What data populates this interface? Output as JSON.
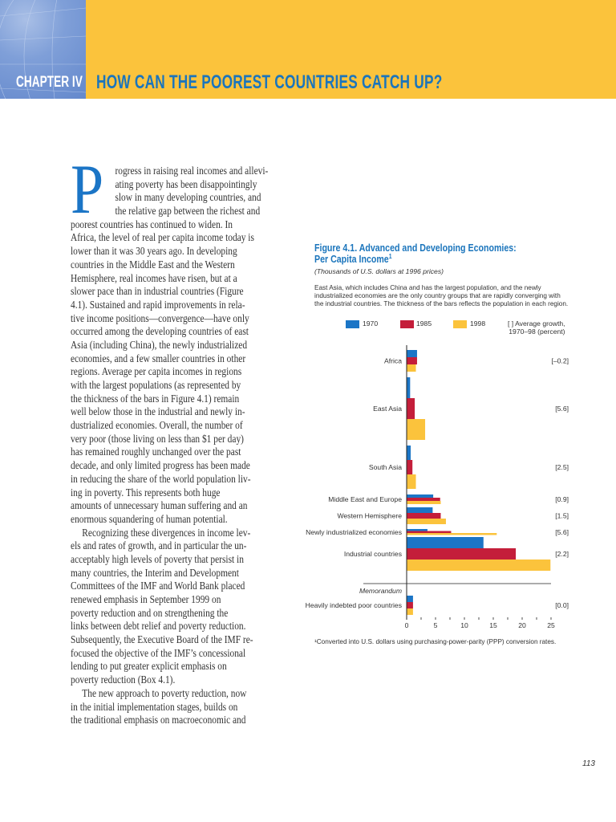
{
  "header": {
    "chapter": "CHAPTER IV",
    "title": "HOW CAN THE POOREST COUNTRIES CATCH UP?",
    "colors": {
      "band": "#FBC33C",
      "title": "#1B75BC"
    }
  },
  "body": {
    "drop_cap": "P",
    "lines": [
      "rogress in raising real incomes and allevi-",
      "ating poverty has been disappointingly",
      "slow in many developing countries, and",
      "the relative gap between the richest and",
      "poorest countries has continued to widen. In",
      "Africa, the level of real per capita income today is",
      "lower than it was 30 years ago. In developing",
      "countries in the Middle East and the Western",
      "Hemisphere, real incomes have risen, but at a",
      "slower pace than in industrial countries (Figure",
      "4.1). Sustained and rapid improvements in rela-",
      "tive income positions—convergence—have only",
      "occurred among the developing countries of east",
      "Asia (including China), the newly industrialized",
      "economies, and a few smaller countries in other",
      "regions. Average per capita incomes in regions",
      "with the largest populations (as represented by",
      "the thickness of the bars in Figure 4.1) remain",
      "well below those in the industrial and newly in-",
      "dustrialized economies. Overall, the number of",
      "very poor (those living on less than $1 per day)",
      "has remained roughly unchanged over the past",
      "decade, and only limited progress has been made",
      "in reducing the share of the world population liv-",
      "ing in poverty. This represents both huge",
      "amounts of unnecessary human suffering and an",
      "enormous squandering of human potential.",
      "Recognizing these divergences in income lev-",
      "els and rates of growth, and in particular the un-",
      "acceptably high levels of poverty that persist in",
      "many countries, the Interim and Development",
      "Committees of the IMF and World Bank placed",
      "renewed emphasis in September 1999 on",
      "poverty reduction and on strengthening the",
      "links between debt relief and poverty reduction.",
      "Subsequently, the Executive Board of the IMF re-",
      "focused the objective of the IMF’s concessional",
      "lending to put greater explicit emphasis on",
      "poverty reduction (Box 4.1).",
      "The new approach to poverty reduction, now",
      "in the initial implementation stages, builds on",
      "the traditional emphasis on macroeconomic and"
    ]
  },
  "figure": {
    "title_line1": "Figure 4.1.  Advanced and Developing Economies:",
    "title_line2": "Per Capita Income",
    "title_sup": "1",
    "subtitle": "(Thousands of U.S. dollars at 1996 prices)",
    "description": [
      "East Asia, which includes China and has the largest population, and the newly",
      "industrialized economies are the only country groups that are rapidly converging with",
      "the industrial countries. The thickness of the bars reflects the population in each region."
    ],
    "footnote": "¹Converted into U.S. dollars using purchasing-power-parity (PPP) conversion rates."
  },
  "chart_data": {
    "type": "bar",
    "orientation": "horizontal",
    "title": "Figure 4.1. Advanced and Developing Economies: Per Capita Income",
    "xlabel": "(Thousands of U.S. dollars at 1996 prices)",
    "xlim": [
      0,
      25
    ],
    "xticks": [
      "0",
      "5",
      "10",
      "15",
      "20",
      "25"
    ],
    "legend_placement": "top",
    "growth_legend": [
      "[   ]  Average growth,",
      "1970–98 (percent)"
    ],
    "memorandum_label": "Memorandum",
    "categories": [
      "Africa",
      "East Asia",
      "South Asia",
      "Middle East and Europe",
      "Western Hemisphere",
      "Newly industrialized economies",
      "Industrial countries",
      "Heavily indebted poor countries"
    ],
    "growth": [
      "[–0.2]",
      "[5.6]",
      "[2.5]",
      "[0.9]",
      "[1.5]",
      "[5.6]",
      "[2.2]",
      "[0.0]"
    ],
    "series": [
      {
        "name": "1970",
        "color": "#1B75C6",
        "values": [
          1.8,
          0.6,
          0.7,
          4.6,
          4.5,
          3.6,
          13.3,
          1.1
        ]
      },
      {
        "name": "1985",
        "color": "#C41E3A",
        "values": [
          1.8,
          1.4,
          1.0,
          5.8,
          5.9,
          7.7,
          18.9,
          1.1
        ]
      },
      {
        "name": "1998",
        "color": "#FBC33C",
        "values": [
          1.6,
          3.2,
          1.6,
          5.9,
          6.8,
          15.6,
          24.9,
          1.1
        ]
      }
    ]
  },
  "page_number": "113"
}
